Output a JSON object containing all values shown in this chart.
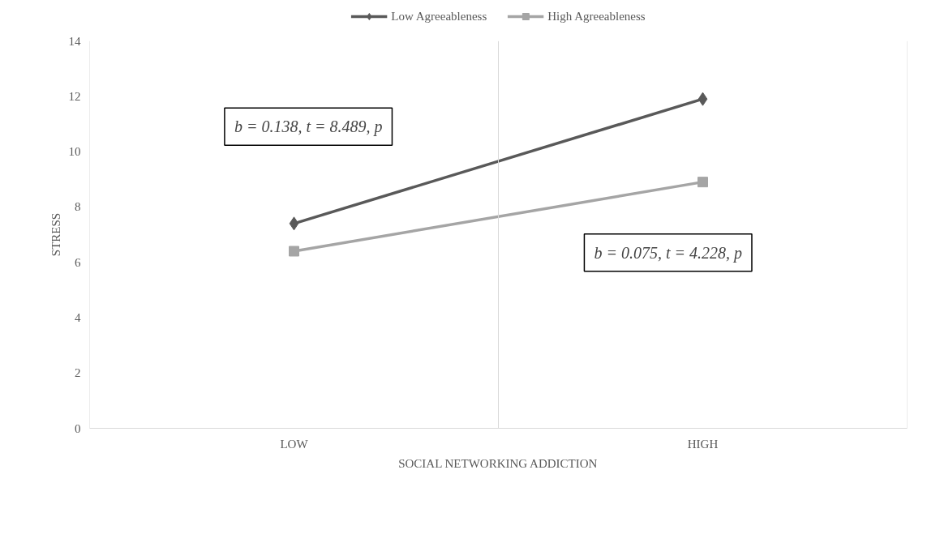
{
  "chart_data": {
    "type": "line",
    "xlabel": "SOCIAL NETWORKING ADDICTION",
    "ylabel": "STRESS",
    "categories": [
      "LOW",
      "HIGH"
    ],
    "series": [
      {
        "name": "Low Agreeableness",
        "color": "#595959",
        "values": [
          7.4,
          11.9
        ],
        "marker": "diamond"
      },
      {
        "name": "High Agreeableness",
        "color": "#a5a5a5",
        "values": [
          6.4,
          8.9
        ],
        "marker": "square"
      }
    ],
    "ylim": [
      0,
      14
    ],
    "yticks": [
      0,
      2,
      4,
      6,
      8,
      10,
      12,
      14
    ],
    "grid": "x",
    "legend": "top",
    "line_style": "solid",
    "annotations": [
      "b = 0.138, t = 8.489, p",
      "b = 0.075, t = 4.228, p"
    ]
  }
}
